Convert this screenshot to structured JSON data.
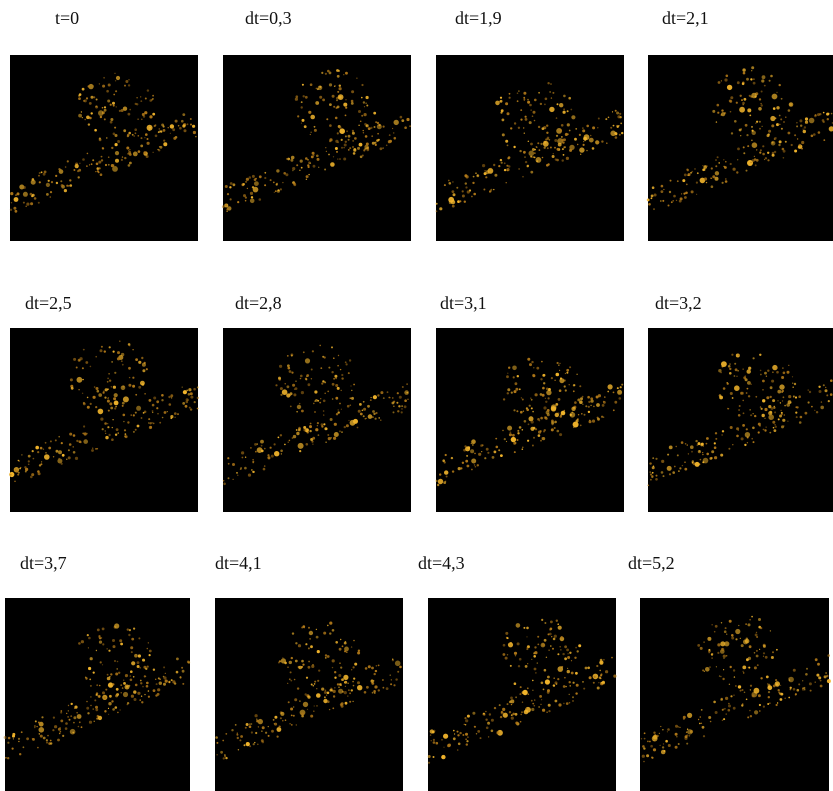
{
  "panels": [
    {
      "label": "t=0"
    },
    {
      "label": "dt=0,3"
    },
    {
      "label": "dt=1,9"
    },
    {
      "label": "dt=2,1"
    },
    {
      "label": "dt=2,5"
    },
    {
      "label": "dt=2,8"
    },
    {
      "label": "dt=3,1"
    },
    {
      "label": "dt=3,2"
    },
    {
      "label": "dt=3,7"
    },
    {
      "label": "dt=4,1"
    },
    {
      "label": "dt=4,3"
    },
    {
      "label": "dt=5,2"
    }
  ]
}
